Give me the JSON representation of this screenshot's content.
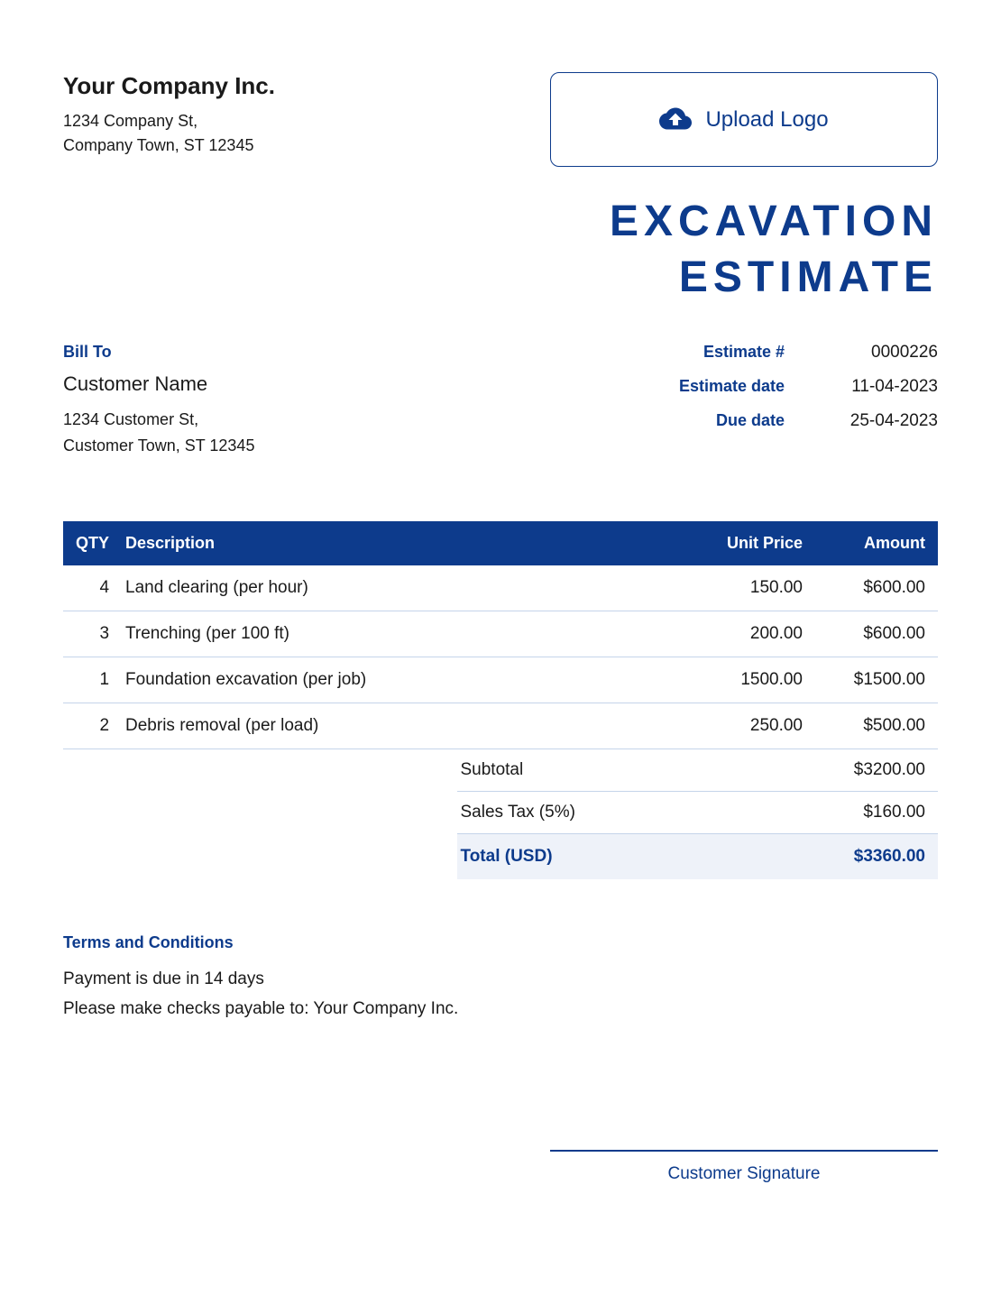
{
  "company": {
    "name": "Your Company Inc.",
    "address_line1": "1234 Company St,",
    "address_line2": "Company Town, ST 12345"
  },
  "upload_logo_label": "Upload Logo",
  "document_title_line1": "EXCAVATION",
  "document_title_line2": "ESTIMATE",
  "bill_to": {
    "label": "Bill To",
    "customer_name": "Customer Name",
    "address_line1": "1234 Customer St,",
    "address_line2": "Customer Town, ST 12345"
  },
  "estimate": {
    "number_label": "Estimate #",
    "number_value": "0000226",
    "date_label": "Estimate date",
    "date_value": "11-04-2023",
    "due_label": "Due date",
    "due_value": "25-04-2023"
  },
  "table": {
    "headers": {
      "qty": "QTY",
      "description": "Description",
      "unit_price": "Unit Price",
      "amount": "Amount"
    },
    "rows": [
      {
        "qty": "4",
        "description": "Land clearing (per hour)",
        "unit_price": "150.00",
        "amount": "$600.00"
      },
      {
        "qty": "3",
        "description": "Trenching (per 100 ft)",
        "unit_price": "200.00",
        "amount": "$600.00"
      },
      {
        "qty": "1",
        "description": "Foundation excavation (per job)",
        "unit_price": "1500.00",
        "amount": "$1500.00"
      },
      {
        "qty": "2",
        "description": "Debris removal (per load)",
        "unit_price": "250.00",
        "amount": "$500.00"
      }
    ]
  },
  "totals": {
    "subtotal_label": "Subtotal",
    "subtotal_value": "$3200.00",
    "tax_label": "Sales Tax (5%)",
    "tax_value": "$160.00",
    "total_label": "Total (USD)",
    "total_value": "$3360.00"
  },
  "terms": {
    "label": "Terms and Conditions",
    "line1": "Payment is due in 14 days",
    "line2": "Please make checks payable to: Your Company Inc."
  },
  "signature_label": "Customer Signature",
  "colors": {
    "primary": "#0d3b8c",
    "text": "#1a1a1a",
    "row_border": "#c5d4ea",
    "total_bg": "#eef2f9",
    "background": "#ffffff"
  }
}
